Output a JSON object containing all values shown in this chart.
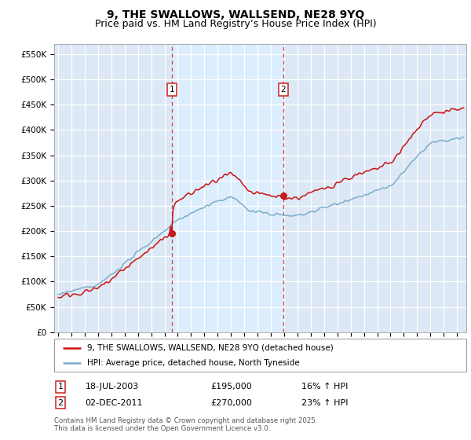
{
  "title": "9, THE SWALLOWS, WALLSEND, NE28 9YQ",
  "subtitle": "Price paid vs. HM Land Registry’s House Price Index (HPI)",
  "ylim": [
    0,
    570000
  ],
  "yticks": [
    0,
    50000,
    100000,
    150000,
    200000,
    250000,
    300000,
    350000,
    400000,
    450000,
    500000,
    550000
  ],
  "ytick_labels": [
    "£0",
    "£50K",
    "£100K",
    "£150K",
    "£200K",
    "£250K",
    "£300K",
    "£350K",
    "£400K",
    "£450K",
    "£500K",
    "£550K"
  ],
  "background_color": "#ffffff",
  "plot_bg_color": "#dce8f5",
  "grid_color": "#ffffff",
  "line1_color": "#cc1111",
  "line2_color": "#7aadcc",
  "vline_color": "#cc4444",
  "span_color": "#ddeeff",
  "sale1_yr": 2003.54,
  "sale2_yr": 2011.92,
  "sale1_price": 195000,
  "sale2_price": 270000,
  "legend_line1": "9, THE SWALLOWS, WALLSEND, NE28 9YQ (detached house)",
  "legend_line2": "HPI: Average price, detached house, North Tyneside",
  "annotation1_date": "18-JUL-2003",
  "annotation1_price": "£195,000",
  "annotation1_hpi": "16% ↑ HPI",
  "annotation2_date": "02-DEC-2011",
  "annotation2_price": "£270,000",
  "annotation2_hpi": "23% ↑ HPI",
  "footer": "Contains HM Land Registry data © Crown copyright and database right 2025.\nThis data is licensed under the Open Government Licence v3.0.",
  "title_fontsize": 10,
  "subtitle_fontsize": 9
}
